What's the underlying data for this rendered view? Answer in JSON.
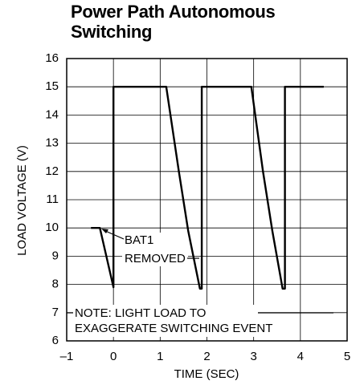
{
  "chart_data": {
    "type": "line",
    "title": "Power Path Autonomous Switching",
    "xlabel": "TIME (SEC)",
    "ylabel": "LOAD VOLTAGE (V)",
    "x": [
      -0.48,
      -0.29,
      0,
      0,
      1.13,
      1.4,
      1.6,
      1.85,
      1.89,
      1.89,
      2.95,
      3.2,
      3.4,
      3.62,
      3.67,
      3.67,
      4.5
    ],
    "values": [
      10,
      10,
      7.9,
      15,
      15,
      12.0,
      9.9,
      7.85,
      7.85,
      15,
      15,
      12.0,
      9.9,
      7.85,
      7.85,
      15,
      15
    ],
    "color": "#000000",
    "xlim": [
      -1,
      5
    ],
    "xticks": [
      {
        "value": -1,
        "label": "–1"
      },
      0,
      1,
      2,
      3,
      4,
      5
    ],
    "ylim": [
      6,
      16
    ],
    "yticks": [
      6,
      7,
      8,
      9,
      10,
      11,
      12,
      13,
      14,
      15,
      16
    ],
    "grid": true,
    "annotations": [
      "BAT1",
      "REMOVED",
      "NOTE: LIGHT LOAD TO",
      "EXAGGERATE SWITCHING EVENT"
    ]
  }
}
